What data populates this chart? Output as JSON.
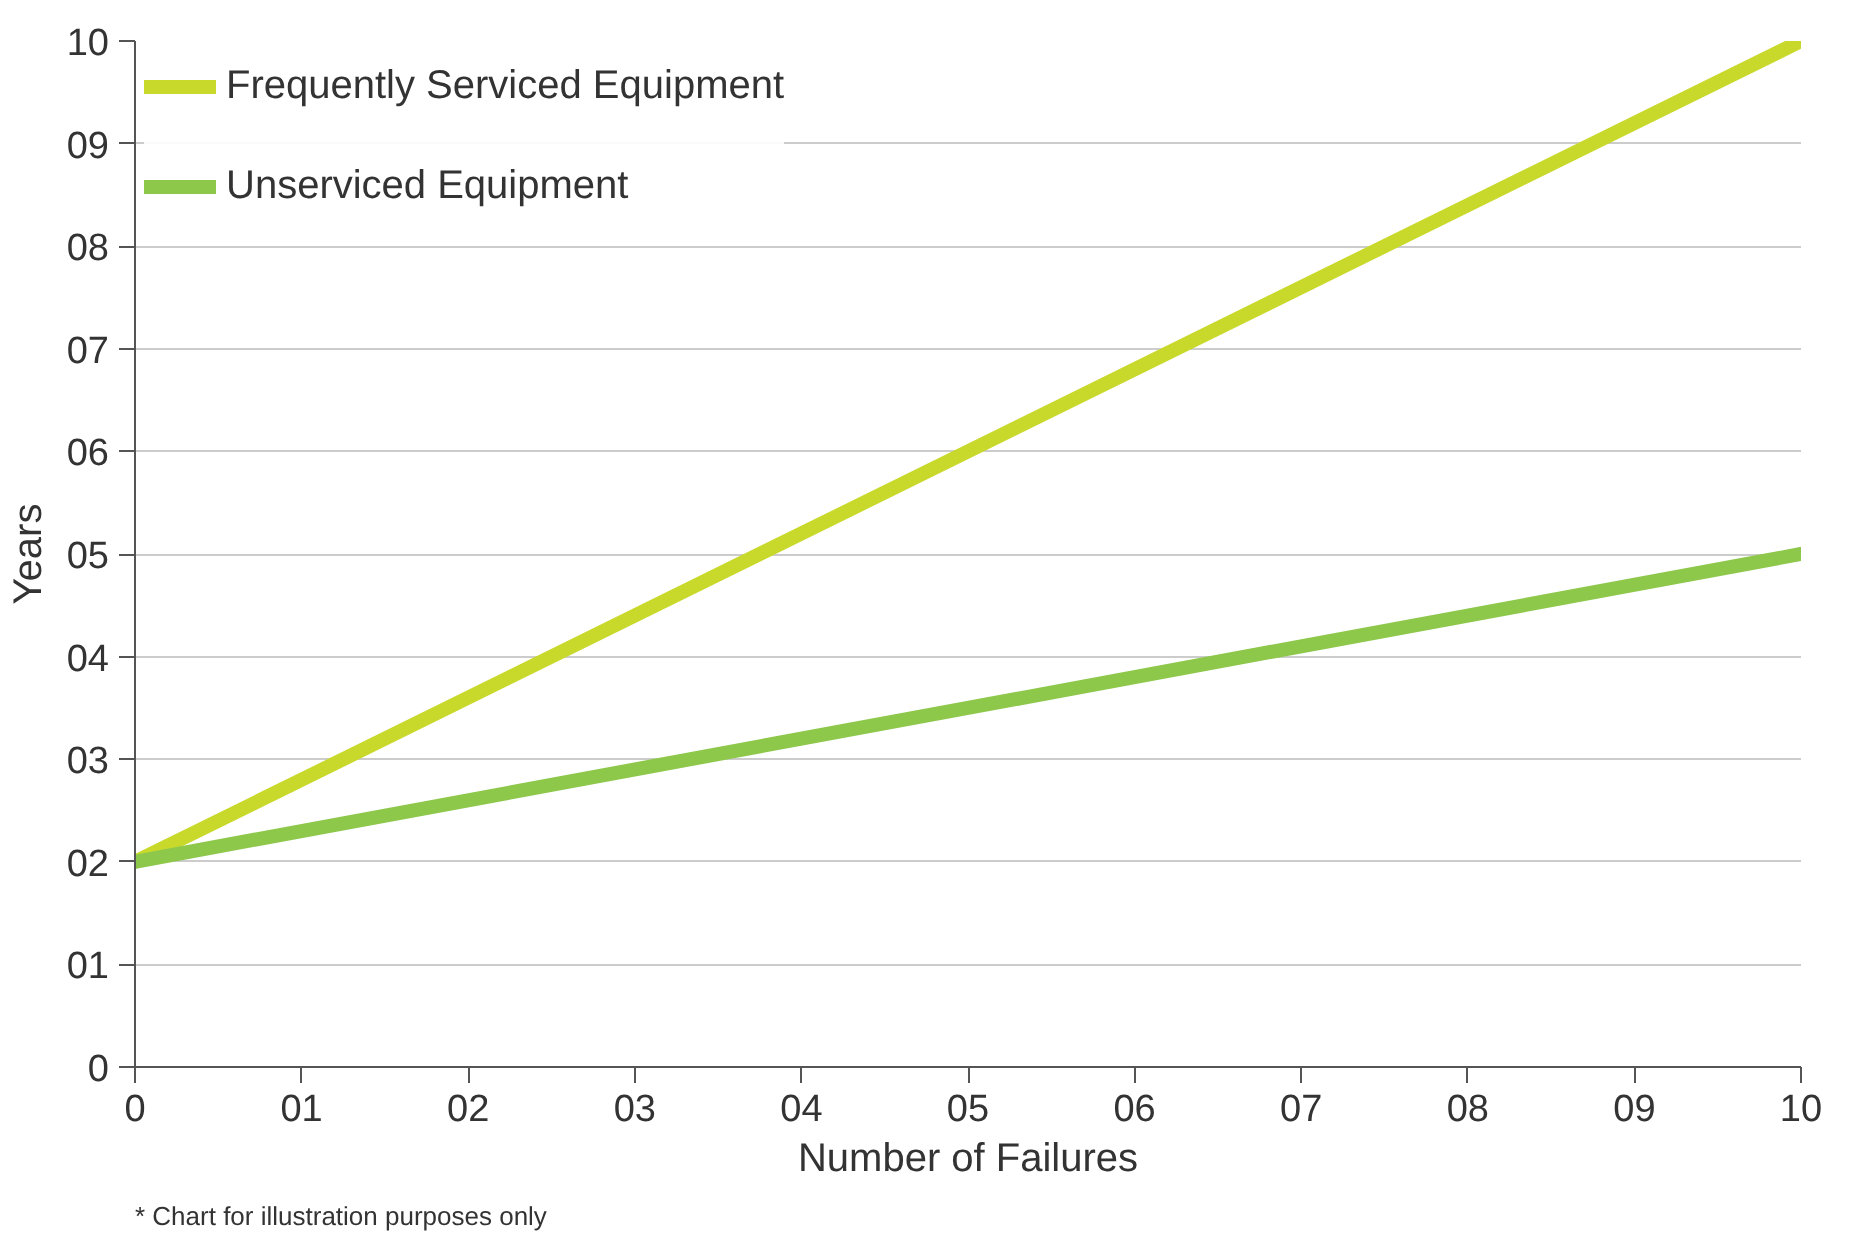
{
  "chart_data": {
    "type": "line",
    "xlabel": "Number of Failures",
    "ylabel": "Years",
    "x": [
      0,
      10
    ],
    "series": [
      {
        "name": "Frequently Serviced Equipment",
        "color": "#c8d92b",
        "values": [
          2,
          10
        ]
      },
      {
        "name": "Unserviced Equipment",
        "color": "#8dc84b",
        "values": [
          2,
          5
        ]
      }
    ],
    "xlim": [
      0,
      10
    ],
    "ylim": [
      0,
      10
    ],
    "xticks": [
      0,
      {
        "value": 1,
        "label": "01"
      },
      {
        "value": 2,
        "label": "02"
      },
      {
        "value": 3,
        "label": "03"
      },
      {
        "value": 4,
        "label": "04"
      },
      {
        "value": 5,
        "label": "05"
      },
      {
        "value": 6,
        "label": "06"
      },
      {
        "value": 7,
        "label": "07"
      },
      {
        "value": 8,
        "label": "08"
      },
      {
        "value": 9,
        "label": "09"
      },
      10
    ],
    "yticks": [
      0,
      {
        "value": 1,
        "label": "01"
      },
      {
        "value": 2,
        "label": "02"
      },
      {
        "value": 3,
        "label": "03"
      },
      {
        "value": 4,
        "label": "04"
      },
      {
        "value": 5,
        "label": "05"
      },
      {
        "value": 6,
        "label": "06"
      },
      {
        "value": 7,
        "label": "07"
      },
      {
        "value": 8,
        "label": "08"
      },
      {
        "value": 9,
        "label": "09"
      },
      10
    ],
    "grid": "y",
    "legend": "top left",
    "line_style": "solid",
    "annotations": [
      "* Chart for illustration purposes only"
    ]
  }
}
